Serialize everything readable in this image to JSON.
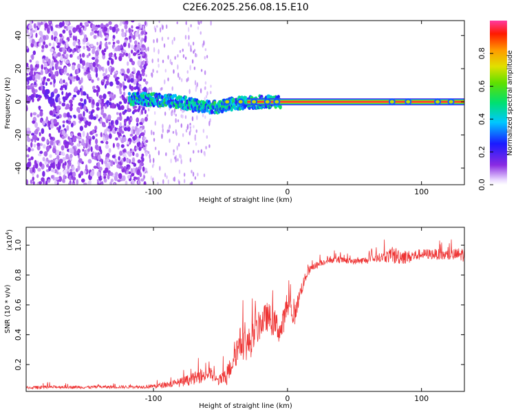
{
  "figure_title": "C2E6.2025.256.08.15.E10",
  "chart_data": [
    {
      "type": "heatmap",
      "title": "C2E6.2025.256.08.15.E10",
      "xlabel": "Height of straight line (km)",
      "ylabel": "Frequency (Hz)",
      "xlim": [
        -195,
        132
      ],
      "ylim": [
        -50,
        49
      ],
      "x_ticks": [
        -100,
        0,
        100
      ],
      "y_ticks": [
        -40,
        -20,
        0,
        20,
        40
      ],
      "colorbar": {
        "label": "Normalized spectral amplitude",
        "range": [
          0,
          1
        ],
        "ticks": [
          "0.0",
          "0.2",
          "0.4",
          "0.6",
          "0.8"
        ],
        "colormap": "rainbow (white-violet-blue-cyan-green-yellow-orange-red-pink)"
      },
      "description_values": {
        "diffuse_region_x": [
          -195,
          -110
        ],
        "drifting_band": [
          {
            "x": -118,
            "f": 2
          },
          {
            "x": -95,
            "f": 1
          },
          {
            "x": -80,
            "f": 0
          },
          {
            "x": -65,
            "f": -3
          },
          {
            "x": -50,
            "f": -3
          },
          {
            "x": -40,
            "f": -1
          },
          {
            "x": -20,
            "f": 0
          },
          {
            "x": 0,
            "f": 0
          },
          {
            "x": 130,
            "f": 0
          }
        ],
        "steady_line_frequency": 0
      }
    },
    {
      "type": "line",
      "xlabel": "Height of straight line (km)",
      "ylabel": "SNR (10 * v/v)",
      "multiplier_label": "(x10",
      "multiplier_exp": "4",
      "multiplier_close": ")",
      "xlim": [
        -195,
        132
      ],
      "ylim": [
        0.02,
        1.12
      ],
      "x_ticks": [
        -100,
        0,
        100
      ],
      "y_ticks": [
        0.2,
        0.4,
        0.6,
        0.8,
        1.0
      ],
      "line_color": "#ee3333",
      "series": [
        {
          "name": "SNR",
          "x": [
            -195,
            -170,
            -150,
            -130,
            -110,
            -100,
            -90,
            -80,
            -72,
            -65,
            -58,
            -52,
            -45,
            -40,
            -35,
            -30,
            -25,
            -20,
            -15,
            -10,
            -5,
            0,
            5,
            10,
            15,
            20,
            25,
            30,
            40,
            50,
            60,
            70,
            80,
            90,
            100,
            110,
            120,
            132
          ],
          "values": [
            0.045,
            0.05,
            0.048,
            0.05,
            0.05,
            0.055,
            0.065,
            0.08,
            0.1,
            0.12,
            0.14,
            0.09,
            0.12,
            0.25,
            0.35,
            0.33,
            0.38,
            0.48,
            0.52,
            0.48,
            0.42,
            0.6,
            0.52,
            0.7,
            0.82,
            0.86,
            0.88,
            0.9,
            0.9,
            0.89,
            0.9,
            0.92,
            0.93,
            0.92,
            0.94,
            0.94,
            0.93,
            0.94
          ],
          "noise_amplitude": [
            0.02,
            0.02,
            0.02,
            0.02,
            0.02,
            0.03,
            0.04,
            0.06,
            0.08,
            0.09,
            0.1,
            0.06,
            0.12,
            0.18,
            0.22,
            0.22,
            0.22,
            0.2,
            0.2,
            0.2,
            0.18,
            0.16,
            0.14,
            0.1,
            0.06,
            0.05,
            0.04,
            0.04,
            0.04,
            0.04,
            0.05,
            0.06,
            0.12,
            0.09,
            0.07,
            0.07,
            0.08,
            0.1
          ]
        }
      ]
    }
  ]
}
